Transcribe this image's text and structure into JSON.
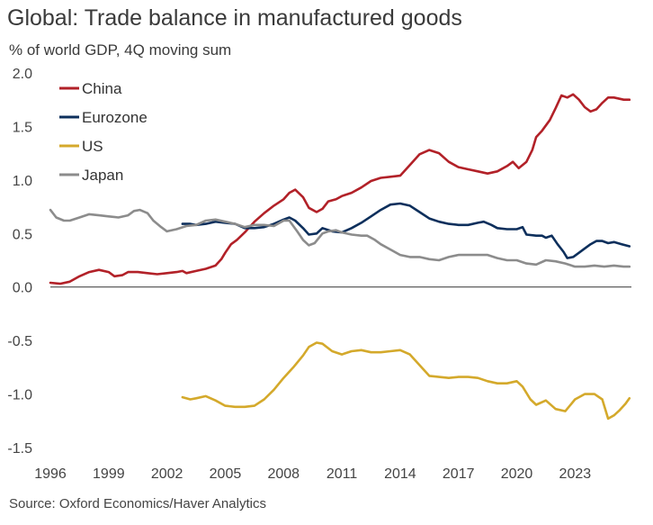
{
  "header": {
    "title": "Global: Trade balance in manufactured goods",
    "subtitle": "% of world GDP, 4Q moving sum"
  },
  "footer": {
    "source": "Source: Oxford Economics/Haver Analytics"
  },
  "chart_data": {
    "type": "line",
    "title": "Global: Trade balance in manufactured goods",
    "subtitle": "% of world GDP, 4Q moving sum",
    "xlabel": "",
    "ylabel": "",
    "xlim": [
      1996,
      2025.9
    ],
    "ylim": [
      -1.5,
      2.0
    ],
    "x_ticks": [
      "1996",
      "1999",
      "2002",
      "2005",
      "2008",
      "2011",
      "2014",
      "2017",
      "2020",
      "2023"
    ],
    "y_ticks": [
      "2.0",
      "1.5",
      "1.0",
      "0.5",
      "0.0",
      "-0.5",
      "-1.0",
      "-1.5"
    ],
    "grid": false,
    "legend_position": "top-left",
    "series": [
      {
        "name": "China",
        "color": "#b22128",
        "points": [
          [
            1996.0,
            0.04
          ],
          [
            1996.5,
            0.03
          ],
          [
            1997.0,
            0.05
          ],
          [
            1997.5,
            0.1
          ],
          [
            1998.0,
            0.14
          ],
          [
            1998.5,
            0.16
          ],
          [
            1999.0,
            0.14
          ],
          [
            1999.3,
            0.1
          ],
          [
            1999.7,
            0.11
          ],
          [
            2000.0,
            0.14
          ],
          [
            2000.5,
            0.14
          ],
          [
            2001.0,
            0.13
          ],
          [
            2001.5,
            0.12
          ],
          [
            2002.0,
            0.13
          ],
          [
            2002.5,
            0.14
          ],
          [
            2002.8,
            0.15
          ],
          [
            2003.0,
            0.13
          ],
          [
            2003.5,
            0.15
          ],
          [
            2004.0,
            0.17
          ],
          [
            2004.5,
            0.2
          ],
          [
            2004.8,
            0.26
          ],
          [
            2005.0,
            0.32
          ],
          [
            2005.3,
            0.4
          ],
          [
            2005.6,
            0.44
          ],
          [
            2006.0,
            0.51
          ],
          [
            2006.5,
            0.61
          ],
          [
            2007.0,
            0.69
          ],
          [
            2007.5,
            0.76
          ],
          [
            2008.0,
            0.82
          ],
          [
            2008.3,
            0.88
          ],
          [
            2008.6,
            0.91
          ],
          [
            2009.0,
            0.84
          ],
          [
            2009.3,
            0.74
          ],
          [
            2009.7,
            0.7
          ],
          [
            2010.0,
            0.73
          ],
          [
            2010.3,
            0.8
          ],
          [
            2010.7,
            0.82
          ],
          [
            2011.0,
            0.85
          ],
          [
            2011.5,
            0.88
          ],
          [
            2012.0,
            0.93
          ],
          [
            2012.5,
            0.99
          ],
          [
            2013.0,
            1.02
          ],
          [
            2013.5,
            1.03
          ],
          [
            2014.0,
            1.04
          ],
          [
            2014.3,
            1.1
          ],
          [
            2014.7,
            1.18
          ],
          [
            2015.0,
            1.24
          ],
          [
            2015.5,
            1.28
          ],
          [
            2016.0,
            1.25
          ],
          [
            2016.5,
            1.17
          ],
          [
            2017.0,
            1.12
          ],
          [
            2017.5,
            1.1
          ],
          [
            2018.0,
            1.08
          ],
          [
            2018.5,
            1.06
          ],
          [
            2019.0,
            1.08
          ],
          [
            2019.5,
            1.13
          ],
          [
            2019.8,
            1.17
          ],
          [
            2020.1,
            1.11
          ],
          [
            2020.5,
            1.17
          ],
          [
            2020.8,
            1.28
          ],
          [
            2021.0,
            1.4
          ],
          [
            2021.3,
            1.46
          ],
          [
            2021.7,
            1.56
          ],
          [
            2022.0,
            1.67
          ],
          [
            2022.3,
            1.79
          ],
          [
            2022.6,
            1.77
          ],
          [
            2022.9,
            1.8
          ],
          [
            2023.2,
            1.75
          ],
          [
            2023.5,
            1.68
          ],
          [
            2023.8,
            1.64
          ],
          [
            2024.1,
            1.66
          ],
          [
            2024.4,
            1.72
          ],
          [
            2024.7,
            1.77
          ],
          [
            2025.0,
            1.77
          ],
          [
            2025.5,
            1.75
          ],
          [
            2025.8,
            1.75
          ]
        ]
      },
      {
        "name": "Eurozone",
        "color": "#0d2f5c",
        "points": [
          [
            2002.8,
            0.59
          ],
          [
            2003.2,
            0.59
          ],
          [
            2003.5,
            0.58
          ],
          [
            2004.0,
            0.59
          ],
          [
            2004.5,
            0.61
          ],
          [
            2005.0,
            0.6
          ],
          [
            2005.5,
            0.59
          ],
          [
            2006.0,
            0.55
          ],
          [
            2006.5,
            0.55
          ],
          [
            2007.0,
            0.56
          ],
          [
            2007.5,
            0.59
          ],
          [
            2008.0,
            0.63
          ],
          [
            2008.3,
            0.65
          ],
          [
            2008.6,
            0.62
          ],
          [
            2009.0,
            0.55
          ],
          [
            2009.3,
            0.49
          ],
          [
            2009.7,
            0.5
          ],
          [
            2010.0,
            0.55
          ],
          [
            2010.5,
            0.52
          ],
          [
            2011.0,
            0.51
          ],
          [
            2011.5,
            0.55
          ],
          [
            2012.0,
            0.6
          ],
          [
            2012.5,
            0.66
          ],
          [
            2013.0,
            0.72
          ],
          [
            2013.5,
            0.77
          ],
          [
            2014.0,
            0.78
          ],
          [
            2014.5,
            0.76
          ],
          [
            2015.0,
            0.7
          ],
          [
            2015.5,
            0.64
          ],
          [
            2016.0,
            0.61
          ],
          [
            2016.5,
            0.59
          ],
          [
            2017.0,
            0.58
          ],
          [
            2017.5,
            0.58
          ],
          [
            2018.0,
            0.6
          ],
          [
            2018.3,
            0.61
          ],
          [
            2018.7,
            0.58
          ],
          [
            2019.0,
            0.55
          ],
          [
            2019.5,
            0.54
          ],
          [
            2020.0,
            0.54
          ],
          [
            2020.3,
            0.56
          ],
          [
            2020.5,
            0.49
          ],
          [
            2021.0,
            0.48
          ],
          [
            2021.3,
            0.48
          ],
          [
            2021.5,
            0.46
          ],
          [
            2021.8,
            0.48
          ],
          [
            2022.1,
            0.4
          ],
          [
            2022.4,
            0.33
          ],
          [
            2022.6,
            0.27
          ],
          [
            2022.9,
            0.28
          ],
          [
            2023.2,
            0.32
          ],
          [
            2023.5,
            0.36
          ],
          [
            2023.8,
            0.4
          ],
          [
            2024.1,
            0.43
          ],
          [
            2024.4,
            0.43
          ],
          [
            2024.7,
            0.41
          ],
          [
            2025.0,
            0.42
          ],
          [
            2025.4,
            0.4
          ],
          [
            2025.8,
            0.38
          ]
        ]
      },
      {
        "name": "US",
        "color": "#d4a92b",
        "points": [
          [
            2002.8,
            -1.03
          ],
          [
            2003.2,
            -1.05
          ],
          [
            2003.5,
            -1.04
          ],
          [
            2004.0,
            -1.02
          ],
          [
            2004.5,
            -1.06
          ],
          [
            2005.0,
            -1.11
          ],
          [
            2005.5,
            -1.12
          ],
          [
            2006.0,
            -1.12
          ],
          [
            2006.5,
            -1.11
          ],
          [
            2007.0,
            -1.05
          ],
          [
            2007.5,
            -0.96
          ],
          [
            2008.0,
            -0.85
          ],
          [
            2008.5,
            -0.75
          ],
          [
            2009.0,
            -0.64
          ],
          [
            2009.3,
            -0.56
          ],
          [
            2009.7,
            -0.52
          ],
          [
            2010.0,
            -0.53
          ],
          [
            2010.5,
            -0.6
          ],
          [
            2011.0,
            -0.63
          ],
          [
            2011.5,
            -0.6
          ],
          [
            2012.0,
            -0.59
          ],
          [
            2012.5,
            -0.61
          ],
          [
            2013.0,
            -0.61
          ],
          [
            2013.5,
            -0.6
          ],
          [
            2014.0,
            -0.59
          ],
          [
            2014.5,
            -0.63
          ],
          [
            2015.0,
            -0.73
          ],
          [
            2015.5,
            -0.83
          ],
          [
            2016.0,
            -0.84
          ],
          [
            2016.5,
            -0.85
          ],
          [
            2017.0,
            -0.84
          ],
          [
            2017.5,
            -0.84
          ],
          [
            2018.0,
            -0.85
          ],
          [
            2018.5,
            -0.88
          ],
          [
            2019.0,
            -0.9
          ],
          [
            2019.5,
            -0.9
          ],
          [
            2020.0,
            -0.88
          ],
          [
            2020.3,
            -0.93
          ],
          [
            2020.7,
            -1.05
          ],
          [
            2021.0,
            -1.1
          ],
          [
            2021.5,
            -1.06
          ],
          [
            2022.0,
            -1.14
          ],
          [
            2022.5,
            -1.16
          ],
          [
            2023.0,
            -1.05
          ],
          [
            2023.5,
            -1.0
          ],
          [
            2024.0,
            -1.0
          ],
          [
            2024.4,
            -1.05
          ],
          [
            2024.7,
            -1.23
          ],
          [
            2025.0,
            -1.2
          ],
          [
            2025.3,
            -1.15
          ],
          [
            2025.6,
            -1.09
          ],
          [
            2025.8,
            -1.04
          ]
        ]
      },
      {
        "name": "Japan",
        "color": "#8c8c8c",
        "points": [
          [
            1996.0,
            0.72
          ],
          [
            1996.3,
            0.65
          ],
          [
            1996.7,
            0.62
          ],
          [
            1997.0,
            0.62
          ],
          [
            1997.5,
            0.65
          ],
          [
            1998.0,
            0.68
          ],
          [
            1998.5,
            0.67
          ],
          [
            1999.0,
            0.66
          ],
          [
            1999.5,
            0.65
          ],
          [
            2000.0,
            0.67
          ],
          [
            2000.3,
            0.71
          ],
          [
            2000.6,
            0.72
          ],
          [
            2001.0,
            0.69
          ],
          [
            2001.3,
            0.62
          ],
          [
            2001.7,
            0.56
          ],
          [
            2002.0,
            0.52
          ],
          [
            2002.5,
            0.54
          ],
          [
            2003.0,
            0.57
          ],
          [
            2003.5,
            0.58
          ],
          [
            2004.0,
            0.62
          ],
          [
            2004.5,
            0.63
          ],
          [
            2005.0,
            0.61
          ],
          [
            2005.5,
            0.59
          ],
          [
            2006.0,
            0.56
          ],
          [
            2006.5,
            0.58
          ],
          [
            2007.0,
            0.58
          ],
          [
            2007.5,
            0.57
          ],
          [
            2008.0,
            0.62
          ],
          [
            2008.3,
            0.62
          ],
          [
            2008.7,
            0.52
          ],
          [
            2009.0,
            0.44
          ],
          [
            2009.3,
            0.39
          ],
          [
            2009.6,
            0.41
          ],
          [
            2010.0,
            0.5
          ],
          [
            2010.3,
            0.52
          ],
          [
            2010.7,
            0.53
          ],
          [
            2011.0,
            0.51
          ],
          [
            2011.5,
            0.49
          ],
          [
            2012.0,
            0.48
          ],
          [
            2012.3,
            0.48
          ],
          [
            2012.7,
            0.44
          ],
          [
            2013.0,
            0.4
          ],
          [
            2013.5,
            0.35
          ],
          [
            2014.0,
            0.3
          ],
          [
            2014.5,
            0.28
          ],
          [
            2015.0,
            0.28
          ],
          [
            2015.5,
            0.26
          ],
          [
            2016.0,
            0.25
          ],
          [
            2016.5,
            0.28
          ],
          [
            2017.0,
            0.3
          ],
          [
            2017.5,
            0.3
          ],
          [
            2018.0,
            0.3
          ],
          [
            2018.5,
            0.3
          ],
          [
            2019.0,
            0.27
          ],
          [
            2019.5,
            0.25
          ],
          [
            2020.0,
            0.25
          ],
          [
            2020.5,
            0.22
          ],
          [
            2021.0,
            0.21
          ],
          [
            2021.5,
            0.25
          ],
          [
            2022.0,
            0.24
          ],
          [
            2022.5,
            0.22
          ],
          [
            2023.0,
            0.19
          ],
          [
            2023.5,
            0.19
          ],
          [
            2024.0,
            0.2
          ],
          [
            2024.5,
            0.19
          ],
          [
            2025.0,
            0.2
          ],
          [
            2025.5,
            0.19
          ],
          [
            2025.8,
            0.19
          ]
        ]
      }
    ]
  }
}
